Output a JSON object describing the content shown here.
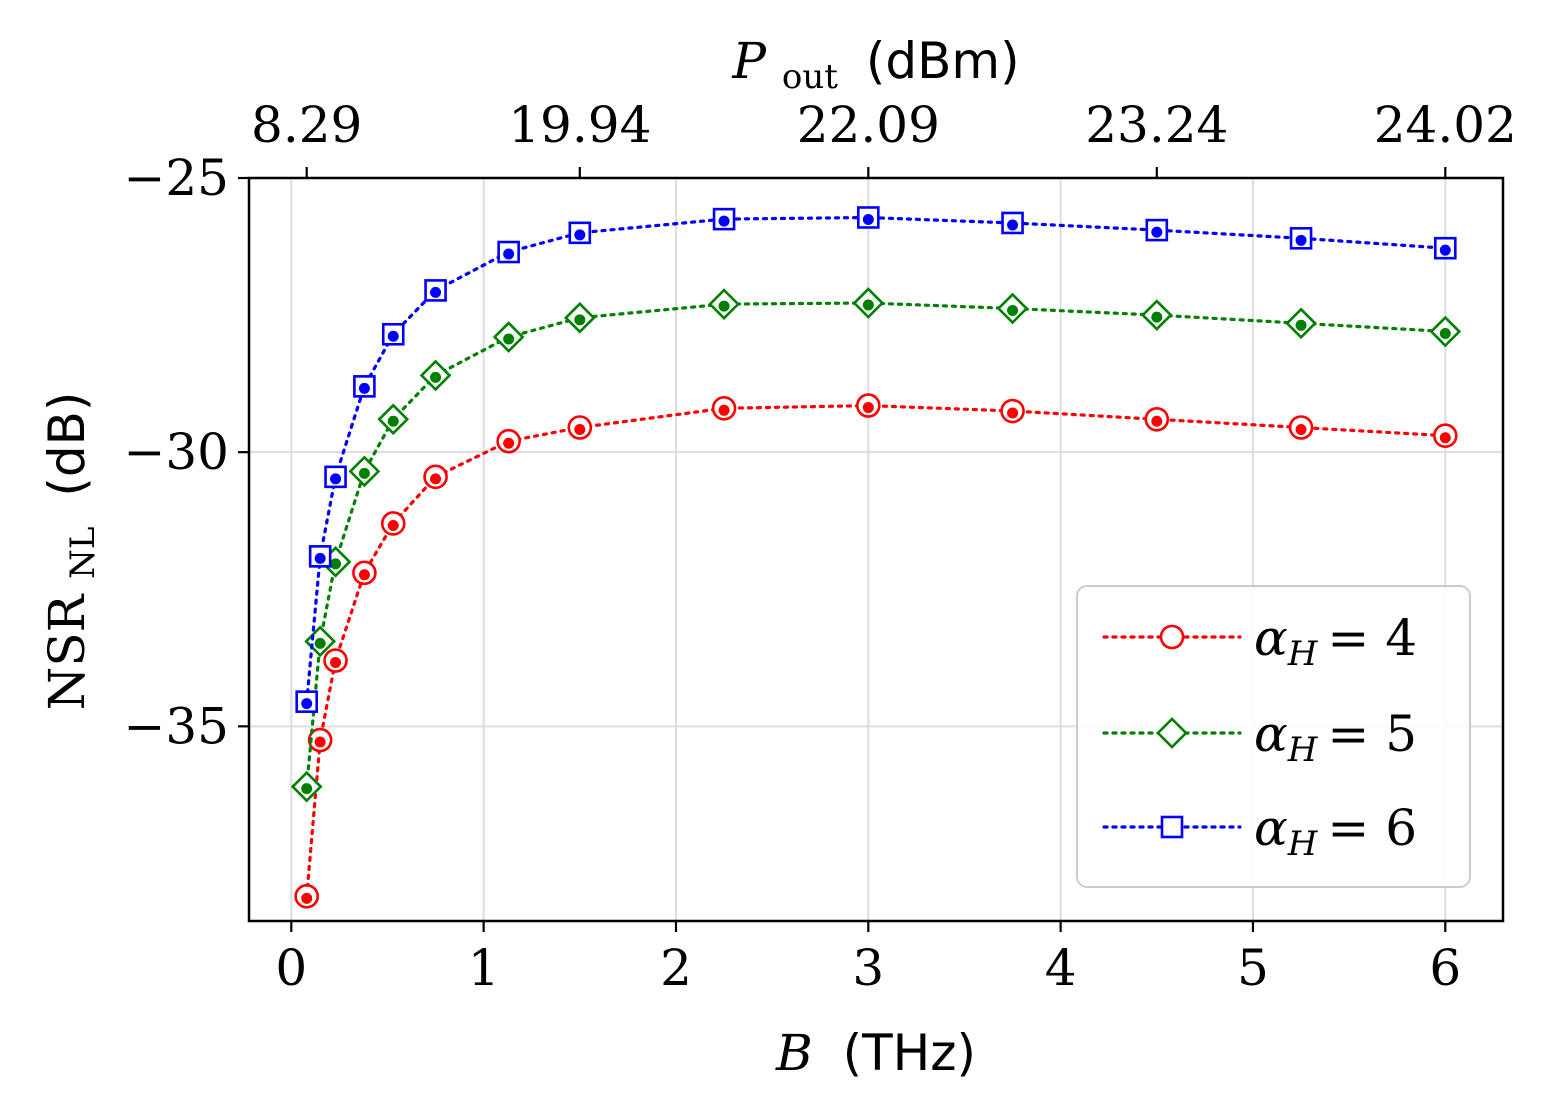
{
  "chart_data": {
    "type": "line",
    "title": "",
    "xlabel": "B (THz)",
    "xlabel_parts": {
      "symbol": "B",
      "unit": "(THz)"
    },
    "ylabel": "NSR_NL (dB)",
    "ylabel_parts": {
      "symbol": "NSR",
      "subscript": "NL",
      "unit": "(dB)"
    },
    "top_xlabel": "P_out (dBm)",
    "top_xlabel_parts": {
      "symbol": "P",
      "subscript": "out",
      "unit": "(dBm)"
    },
    "xlim": [
      -0.22,
      6.3
    ],
    "ylim": [
      -38.55,
      -25
    ],
    "xticks": [
      0,
      1,
      2,
      3,
      4,
      5,
      6
    ],
    "xtick_labels": [
      "0",
      "1",
      "2",
      "3",
      "4",
      "5",
      "6"
    ],
    "yticks": [
      -25,
      -30,
      -35
    ],
    "ytick_labels": [
      "−25",
      "−30",
      "−35"
    ],
    "top_xticks": [
      0.08,
      1.5,
      3,
      4.5,
      6
    ],
    "top_xtick_labels": [
      "8.29",
      "19.94",
      "22.09",
      "23.24",
      "24.02"
    ],
    "grid": true,
    "legend_position": "lower-right",
    "series": [
      {
        "name": "α_H = 4",
        "label_parts": {
          "symbol": "α",
          "subscript": "H",
          "value": "= 4"
        },
        "color": "#ff0000",
        "marker": "circle",
        "x": [
          0.08,
          0.15,
          0.23,
          0.38,
          0.53,
          0.75,
          1.13,
          1.5,
          2.25,
          3.0,
          3.75,
          4.5,
          5.25,
          6.0
        ],
        "y": [
          -38.1,
          -35.25,
          -33.8,
          -32.2,
          -31.3,
          -30.45,
          -29.8,
          -29.55,
          -29.2,
          -29.15,
          -29.25,
          -29.4,
          -29.55,
          -29.7
        ]
      },
      {
        "name": "α_H = 5",
        "label_parts": {
          "symbol": "α",
          "subscript": "H",
          "value": "= 5"
        },
        "color": "#008000",
        "marker": "diamond",
        "x": [
          0.08,
          0.15,
          0.23,
          0.38,
          0.53,
          0.75,
          1.13,
          1.5,
          2.25,
          3.0,
          3.75,
          4.5,
          5.25,
          6.0
        ],
        "y": [
          -36.1,
          -33.45,
          -32.0,
          -30.35,
          -29.4,
          -28.6,
          -27.9,
          -27.55,
          -27.3,
          -27.28,
          -27.38,
          -27.5,
          -27.65,
          -27.8
        ]
      },
      {
        "name": "α_H = 6",
        "label_parts": {
          "symbol": "α",
          "subscript": "H",
          "value": "= 6"
        },
        "color": "#0000ff",
        "marker": "square",
        "x": [
          0.08,
          0.15,
          0.23,
          0.38,
          0.53,
          0.75,
          1.13,
          1.5,
          2.25,
          3.0,
          3.75,
          4.5,
          5.25,
          6.0
        ],
        "y": [
          -34.55,
          -31.9,
          -30.45,
          -28.8,
          -27.85,
          -27.05,
          -26.35,
          -26.0,
          -25.75,
          -25.72,
          -25.82,
          -25.95,
          -26.1,
          -26.28
        ]
      }
    ]
  }
}
